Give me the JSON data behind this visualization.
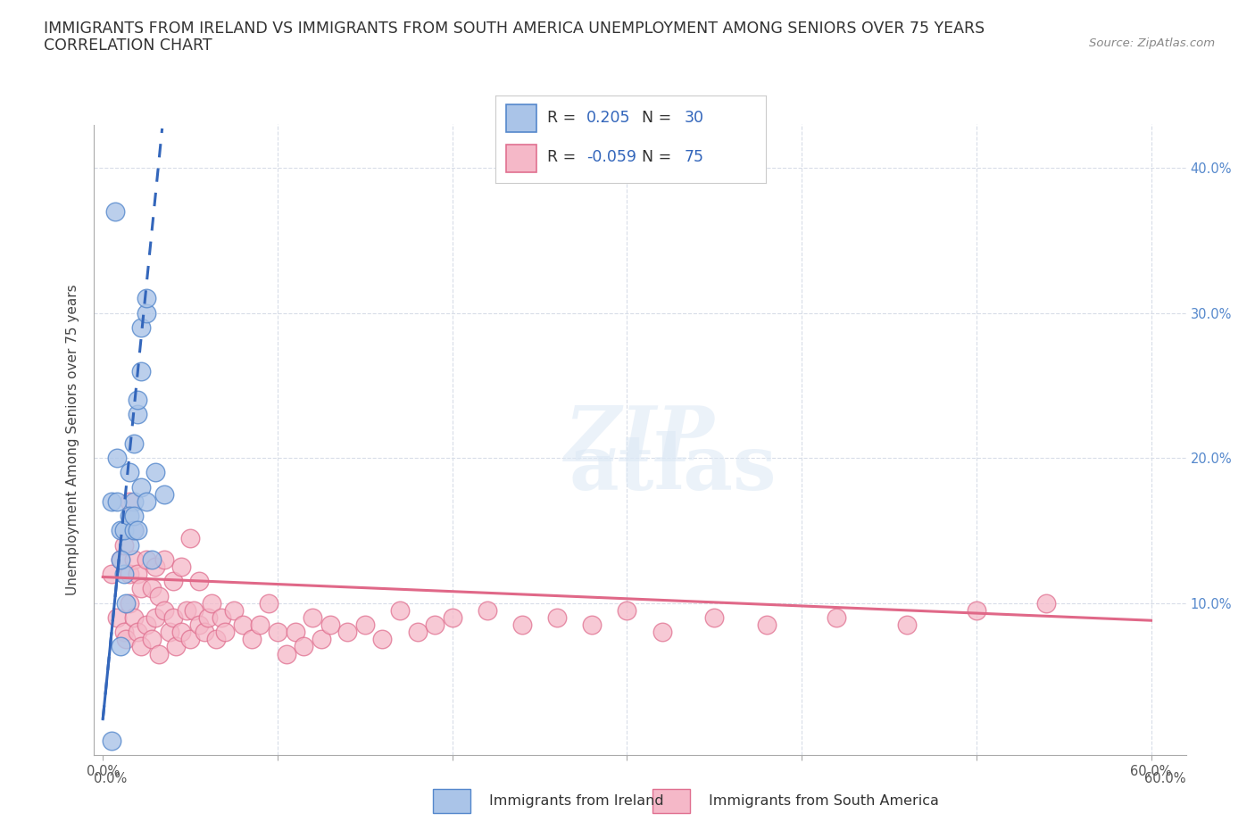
{
  "title_line1": "IMMIGRANTS FROM IRELAND VS IMMIGRANTS FROM SOUTH AMERICA UNEMPLOYMENT AMONG SENIORS OVER 75 YEARS",
  "title_line2": "CORRELATION CHART",
  "source": "Source: ZipAtlas.com",
  "ylabel": "Unemployment Among Seniors over 75 years",
  "watermark_zip": "ZIP",
  "watermark_atlas": "atlas",
  "ireland_R": 0.205,
  "ireland_N": 30,
  "sa_R": -0.059,
  "sa_N": 75,
  "ireland_color": "#aac4e8",
  "ireland_edge_color": "#5588cc",
  "ireland_line_color": "#3366bb",
  "sa_color": "#f5b8c8",
  "sa_edge_color": "#e07090",
  "sa_line_color": "#e06888",
  "grid_color": "#d8dde8",
  "background_color": "#ffffff",
  "ireland_scatter_x": [
    0.005,
    0.01,
    0.012,
    0.013,
    0.015,
    0.015,
    0.018,
    0.018,
    0.02,
    0.02,
    0.022,
    0.022,
    0.025,
    0.025,
    0.028,
    0.005,
    0.008,
    0.008,
    0.01,
    0.01,
    0.012,
    0.015,
    0.018,
    0.018,
    0.02,
    0.022,
    0.025,
    0.03,
    0.035,
    0.007
  ],
  "ireland_scatter_y": [
    0.005,
    0.07,
    0.12,
    0.1,
    0.14,
    0.19,
    0.17,
    0.21,
    0.23,
    0.24,
    0.26,
    0.29,
    0.3,
    0.31,
    0.13,
    0.17,
    0.17,
    0.2,
    0.13,
    0.15,
    0.15,
    0.16,
    0.15,
    0.16,
    0.15,
    0.18,
    0.17,
    0.19,
    0.175,
    0.37
  ],
  "sa_scatter_x": [
    0.005,
    0.008,
    0.01,
    0.012,
    0.012,
    0.013,
    0.015,
    0.015,
    0.015,
    0.018,
    0.018,
    0.018,
    0.02,
    0.02,
    0.022,
    0.022,
    0.025,
    0.025,
    0.028,
    0.028,
    0.03,
    0.03,
    0.032,
    0.032,
    0.035,
    0.035,
    0.038,
    0.04,
    0.04,
    0.042,
    0.045,
    0.045,
    0.048,
    0.05,
    0.05,
    0.052,
    0.055,
    0.055,
    0.058,
    0.06,
    0.062,
    0.065,
    0.068,
    0.07,
    0.075,
    0.08,
    0.085,
    0.09,
    0.095,
    0.1,
    0.105,
    0.11,
    0.115,
    0.12,
    0.125,
    0.13,
    0.14,
    0.15,
    0.16,
    0.17,
    0.18,
    0.19,
    0.2,
    0.22,
    0.24,
    0.26,
    0.28,
    0.3,
    0.32,
    0.35,
    0.38,
    0.42,
    0.46,
    0.5,
    0.54
  ],
  "sa_scatter_y": [
    0.12,
    0.09,
    0.13,
    0.08,
    0.14,
    0.075,
    0.1,
    0.12,
    0.17,
    0.09,
    0.13,
    0.15,
    0.08,
    0.12,
    0.07,
    0.11,
    0.085,
    0.13,
    0.075,
    0.11,
    0.09,
    0.125,
    0.065,
    0.105,
    0.095,
    0.13,
    0.08,
    0.09,
    0.115,
    0.07,
    0.125,
    0.08,
    0.095,
    0.075,
    0.145,
    0.095,
    0.085,
    0.115,
    0.08,
    0.09,
    0.1,
    0.075,
    0.09,
    0.08,
    0.095,
    0.085,
    0.075,
    0.085,
    0.1,
    0.08,
    0.065,
    0.08,
    0.07,
    0.09,
    0.075,
    0.085,
    0.08,
    0.085,
    0.075,
    0.095,
    0.08,
    0.085,
    0.09,
    0.095,
    0.085,
    0.09,
    0.085,
    0.095,
    0.08,
    0.09,
    0.085,
    0.09,
    0.085,
    0.095,
    0.1
  ],
  "xlim": [
    -0.005,
    0.62
  ],
  "ylim": [
    -0.005,
    0.43
  ],
  "ytick_positions": [
    0.1,
    0.2,
    0.3,
    0.4
  ],
  "xtick_positions": [
    0.0,
    0.1,
    0.2,
    0.3,
    0.4,
    0.5,
    0.6
  ],
  "title_fontsize": 12.5,
  "tick_fontsize": 10.5
}
